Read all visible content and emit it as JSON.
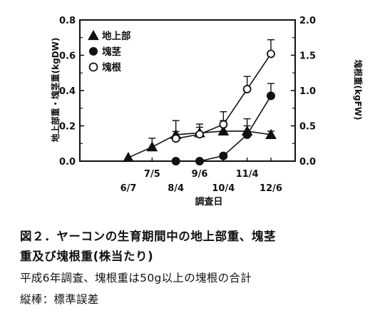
{
  "chart_data": {
    "type": "line",
    "x_dates": [
      "6/7",
      "7/5",
      "8/4",
      "9/6",
      "10/4",
      "11/4",
      "12/6"
    ],
    "x_tick_rows": {
      "top": [
        "7/5",
        "9/6",
        "11/4"
      ],
      "bottom": [
        "6/7",
        "8/4",
        "10/4",
        "12/6"
      ]
    },
    "xlabel": "調査日",
    "ylabel_left": "地上部重・塊茎重(kgDW)",
    "ylabel_right": "塊根重(kgFW)",
    "ylim_left": [
      0,
      0.8
    ],
    "ylim_right": [
      0,
      2.0
    ],
    "yticks_left": [
      "0.0",
      "0.2",
      "0.4",
      "0.6",
      "0.8"
    ],
    "yticks_right": [
      "0.0",
      "0.5",
      "1.0",
      "1.5",
      "2.0"
    ],
    "legend_position": "top-left",
    "series": [
      {
        "name": "地上部",
        "marker": "filled-triangle",
        "axis": "left",
        "x": [
          "6/7",
          "7/5",
          "8/4",
          "9/6",
          "10/4",
          "11/4",
          "12/6"
        ],
        "y": [
          0.02,
          0.08,
          0.15,
          0.16,
          0.17,
          0.17,
          0.15
        ],
        "err": [
          0.0,
          0.05,
          0.08,
          0.05,
          0.06,
          0.07,
          0.02
        ]
      },
      {
        "name": "塊茎",
        "marker": "filled-circle",
        "axis": "left",
        "x": [
          "8/4",
          "9/6",
          "10/4",
          "11/4",
          "12/6"
        ],
        "y": [
          0.0,
          0.0,
          0.03,
          0.15,
          0.37
        ],
        "err": [
          0.0,
          0.0,
          0.01,
          0.05,
          0.07
        ]
      },
      {
        "name": "塊根",
        "marker": "open-circle",
        "axis": "right",
        "x": [
          "8/4",
          "9/6",
          "10/4",
          "11/4",
          "12/6"
        ],
        "y": [
          0.32,
          0.38,
          0.52,
          1.02,
          1.52
        ],
        "err": [
          0.1,
          0.1,
          0.18,
          0.18,
          0.2
        ]
      }
    ]
  },
  "caption": {
    "title_line1": "図２．ヤーコンの生育期間中の地上部重、塊茎",
    "title_line2": "重及び塊根重(株当たり)",
    "note_line1": "平成6年調査、塊根重は50g以上の塊根の合計",
    "note_line2": "縦棒：標準誤差"
  }
}
